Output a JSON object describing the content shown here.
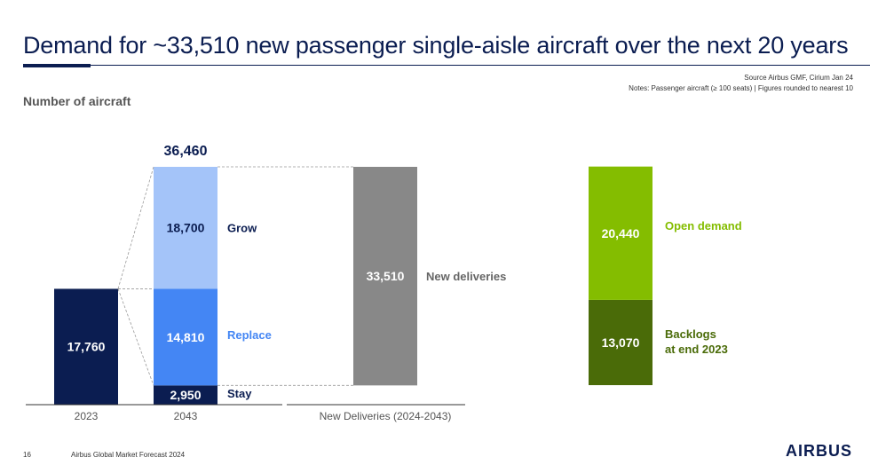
{
  "header": {
    "title": "Demand for ~33,510 new passenger single-aisle aircraft over the next 20 years",
    "source_line1": "Source Airbus GMF, Cirium Jan 24",
    "source_line2": "Notes: Passenger aircraft (≥ 100 seats) | Figures rounded to nearest 10",
    "subtitle": "Number of aircraft"
  },
  "chart_data": {
    "type": "bar",
    "categories": [
      "2023",
      "2043",
      "New Deliveries (2024-2043)"
    ],
    "series": [
      {
        "name": "Stay",
        "values": [
          null,
          2950,
          null
        ],
        "color": "#0b1d51"
      },
      {
        "name": "Replace",
        "values": [
          null,
          14810,
          null
        ],
        "color": "#4486f4"
      },
      {
        "name": "Grow",
        "values": [
          null,
          18700,
          null
        ],
        "color": "#a4c4f9"
      },
      {
        "name": "New deliveries",
        "values": [
          null,
          null,
          33510
        ],
        "color": "#888888"
      }
    ],
    "base_2023": {
      "value": 17760,
      "color": "#0b1d51"
    },
    "total_2043": 36460,
    "labels": {
      "val_2023": "17,760",
      "total_2043": "36,460",
      "val_grow": "18,700",
      "name_grow": "Grow",
      "val_replace": "14,810",
      "name_replace": "Replace",
      "val_stay": "2,950",
      "name_stay": "Stay",
      "val_new": "33,510",
      "name_new": "New deliveries"
    },
    "breakdown": {
      "series": [
        {
          "name": "Backlogs at end 2023",
          "value": 13070,
          "label": "13,070",
          "label_line1": "Backlogs",
          "label_line2": "at end 2023",
          "color": "#4a6b08",
          "text_color": "#4a6b08"
        },
        {
          "name": "Open demand",
          "value": 20440,
          "label": "20,440",
          "label_line1": "Open demand",
          "color": "#84bd00",
          "text_color": "#84bd00"
        }
      ]
    },
    "grid": false
  },
  "footer": {
    "page": "16",
    "text": "Airbus Global Market Forecast 2024",
    "logo": "AIRBUS"
  }
}
